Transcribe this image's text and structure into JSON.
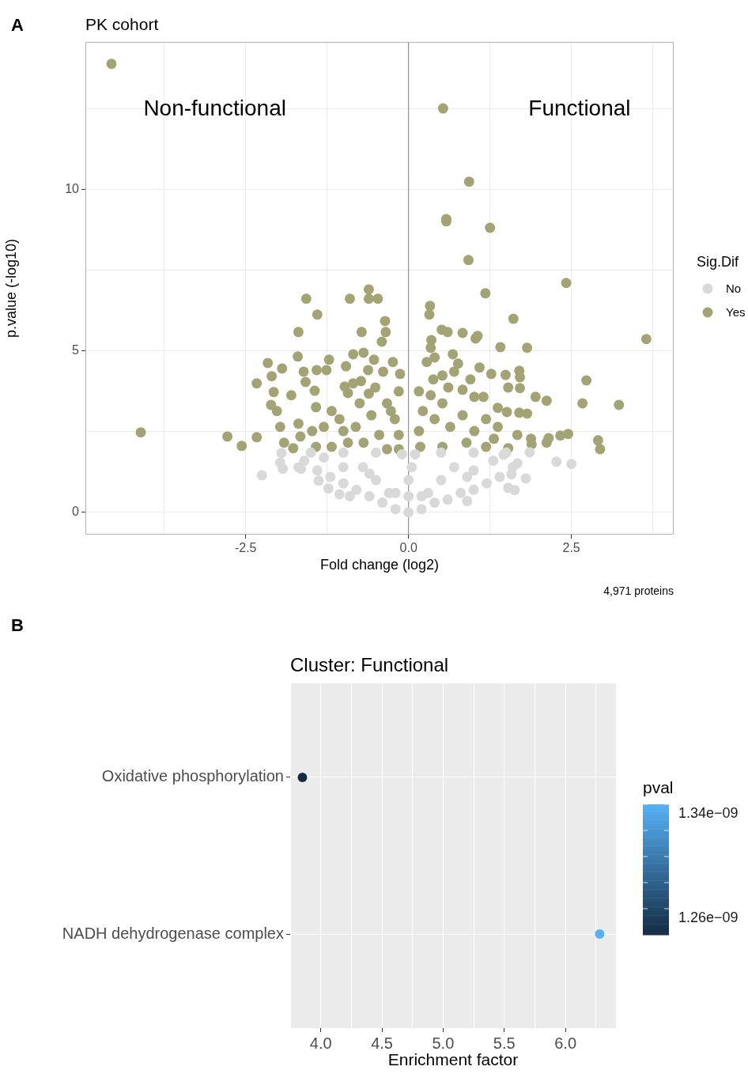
{
  "chart_data": [
    {
      "type": "scatter",
      "title": "PK cohort",
      "xlabel": "Fold change (log2)",
      "ylabel": "p.value (-log10)",
      "legend_title": "Sig.Dif",
      "legend": "right",
      "grid": true,
      "marker": "circle",
      "xlim": [
        -4.96,
        4.07
      ],
      "ylim": [
        -0.69,
        14.58
      ],
      "xticks": [
        {
          "value": -3.75,
          "label": null
        },
        -2.5,
        {
          "value": -1.25,
          "label": null
        },
        {
          "value": 0,
          "label": "0.0"
        },
        {
          "value": 1.25,
          "label": null
        },
        2.5,
        {
          "value": 3.75,
          "label": null
        }
      ],
      "yticks": [
        0,
        {
          "value": 2.5,
          "label": null
        },
        5,
        {
          "value": 7.5,
          "label": null
        },
        10,
        {
          "value": 12.5,
          "label": null
        }
      ],
      "ref_lines": [
        {
          "axis": "x",
          "value": 0,
          "color": "#808080"
        }
      ],
      "annotations": [
        "Non-functional",
        "Functional",
        "4,971 proteins",
        "A"
      ],
      "series": [
        {
          "name": "No",
          "color": "#d9d9d9",
          "x": [
            0,
            -0.2,
            0.2,
            -0.4,
            0.4,
            -0.6,
            0.6,
            -0.8,
            0.8,
            -1.0,
            1.0,
            -1.2,
            1.2,
            -1.4,
            1.4,
            -1.6,
            1.6,
            -1.5,
            1.5,
            -1.0,
            1.0,
            -0.5,
            0.5,
            -0.1,
            0.1,
            -0.5,
            0.5,
            -1.0,
            1.0,
            -0.3,
            0.3,
            0,
            0,
            -0.7,
            0.7,
            0.05,
            -1.3,
            1.3,
            -2.25,
            -1.95,
            -1.97,
            -1.93,
            -1.69,
            -1.65,
            -1.38,
            -1.23,
            -1.06,
            2.27,
            2.5,
            1.8,
            1.67,
            1.86,
            1.63,
            1.53,
            1.58,
            1.46,
            -0.9,
            0.9,
            -0.2,
            0.2,
            0.9,
            -0.6
          ],
          "values": [
            0,
            0.1,
            0.1,
            0.3,
            0.3,
            0.5,
            0.4,
            0.7,
            0.6,
            0.9,
            0.7,
            1.1,
            0.9,
            1.3,
            1.1,
            1.6,
            1.4,
            1.85,
            1.85,
            1.85,
            1.85,
            1.85,
            1.85,
            1.8,
            1.8,
            1.0,
            1.0,
            1.4,
            1.3,
            0.6,
            0.6,
            1.0,
            0.5,
            1.4,
            1.4,
            1.4,
            1.7,
            1.6,
            1.15,
            1.84,
            1.54,
            1.35,
            1.4,
            1.35,
            0.98,
            0.74,
            0.56,
            1.57,
            1.5,
            1.05,
            1.52,
            1.86,
            0.69,
            0.76,
            1.18,
            1.79,
            0.5,
            0.35,
            0.6,
            0.5,
            1.1,
            1.2
          ]
        },
        {
          "name": "Yes",
          "color": "#a3a375",
          "x": [
            -4.56,
            0.53,
            0.93,
            0.58,
            0.58,
            1.25,
            0.92,
            2.42,
            1.18,
            3.65,
            1.61,
            -4.11,
            -2.78,
            -2.56,
            -2.33,
            -2.33,
            -2.16,
            -1.94,
            -2.1,
            -2.07,
            -2.11,
            -2.02,
            -1.8,
            -1.7,
            -1.69,
            -1.57,
            -1.4,
            -1.61,
            -1.58,
            -1.44,
            -1.41,
            -1.26,
            -1.22,
            -0.9,
            -0.61,
            -0.61,
            -0.47,
            -0.36,
            -0.35,
            -0.41,
            -0.72,
            -0.85,
            -0.69,
            -0.62,
            -0.96,
            -0.93,
            -0.98,
            -0.85,
            -0.73,
            -0.61,
            -0.53,
            -0.24,
            -0.13,
            -1.69,
            -1.66,
            -1.77,
            -1.97,
            -1.42,
            -1.18,
            -1.3,
            -1.06,
            -0.81,
            -0.57,
            -0.33,
            -0.21,
            -0.15,
            -0.45,
            -0.69,
            -0.93,
            -1.18,
            -1.42,
            -0.15,
            -0.27,
            -0.39,
            -0.51,
            -0.75,
            -1.0,
            -1.48,
            -1.91,
            -0.15,
            -0.33,
            0.33,
            0.32,
            0.51,
            0.6,
            0.83,
            1.03,
            1.06,
            1.41,
            1.82,
            0.35,
            0.34,
            0.4,
            0.28,
            0.68,
            0.76,
            1.09,
            1.27,
            1.49,
            1.7,
            1.71,
            1.53,
            1.71,
            1.95,
            2.12,
            2.73,
            2.67,
            3.23,
            2.45,
            2.33,
            2.91,
            2.94,
            1.88,
            1.89,
            2.12,
            2.15,
            1.67,
            1.53,
            1.82,
            1.7,
            1.51,
            1.37,
            1.15,
            1.01,
            0.83,
            0.61,
            0.16,
            0.22,
            0.16,
            0.18,
            0.34,
            0.4,
            0.52,
            0.64,
            0.83,
            1.01,
            1.19,
            1.31,
            0.89,
            0.52,
            1.19,
            1.37,
            0.7,
            0.52,
            0.95,
            0.38
          ],
          "values": [
            13.9,
            12.52,
            10.25,
            9.09,
            9.02,
            8.82,
            7.82,
            7.11,
            6.79,
            5.37,
            6.0,
            2.48,
            2.35,
            2.06,
            2.33,
            4.0,
            4.63,
            4.46,
            4.22,
            3.73,
            3.33,
            3.14,
            3.63,
            4.83,
            5.59,
            6.62,
            6.13,
            4.36,
            4.04,
            3.77,
            4.41,
            4.41,
            4.73,
            6.62,
            6.62,
            6.91,
            6.62,
            5.93,
            5.59,
            5.29,
            5.59,
            4.9,
            4.95,
            4.41,
            4.53,
            3.7,
            3.9,
            4.0,
            4.07,
            3.68,
            4.73,
            4.66,
            4.29,
            2.75,
            2.35,
            1.99,
            2.65,
            3.26,
            3.14,
            2.65,
            2.89,
            2.65,
            3.01,
            3.38,
            2.89,
            2.4,
            2.4,
            2.16,
            2.16,
            2.03,
            2.03,
            3.75,
            3.14,
            4.36,
            3.87,
            3.38,
            2.52,
            2.52,
            2.16,
            1.96,
            1.96,
            6.4,
            6.13,
            5.66,
            5.59,
            5.56,
            5.39,
            5.47,
            5.12,
            5.1,
            5.34,
            5.1,
            4.8,
            4.66,
            4.9,
            4.61,
            4.49,
            4.29,
            4.26,
            4.39,
            4.19,
            3.87,
            3.85,
            3.58,
            3.46,
            4.09,
            3.38,
            3.33,
            2.43,
            2.38,
            2.23,
            1.96,
            2.28,
            2.11,
            2.16,
            2.3,
            2.4,
            1.99,
            3.06,
            3.09,
            3.11,
            3.24,
            3.58,
            3.58,
            3.8,
            3.87,
            3.75,
            3.14,
            2.52,
            2.03,
            3.63,
            2.89,
            3.38,
            2.65,
            3.01,
            2.52,
            2.89,
            2.28,
            2.16,
            2.03,
            2.03,
            2.65,
            4.36,
            4.24,
            4.12,
            4.12
          ]
        }
      ]
    },
    {
      "type": "scatter",
      "orientation": "horizontal",
      "title": "Cluster: Functional",
      "xlabel": "Enrichment factor",
      "clabel": "pval",
      "grid": true,
      "marker": "circle",
      "categories": [
        "Oxidative phosphorylation",
        "NADH dehydrogenase complex"
      ],
      "values": [
        3.85,
        6.28
      ],
      "cvalues": [
        1.24e-09,
        1.34e-09
      ],
      "clim": [
        1.24e-09,
        1.34e-09
      ],
      "cticks": [
        {
          "value": 1.26e-09,
          "label": "1.26e−09"
        },
        {
          "value": 1.28e-09,
          "label": null
        },
        {
          "value": 1.3e-09,
          "label": null
        },
        {
          "value": 1.32e-09,
          "label": null
        },
        {
          "value": 1.34e-09,
          "label": "1.34e−09"
        }
      ],
      "xlim": [
        3.75,
        6.413
      ],
      "xticks": [
        {
          "value": 3.75,
          "label": null
        },
        {
          "value": 4,
          "label": "4.0"
        },
        {
          "value": 4.25,
          "label": null
        },
        4.5,
        {
          "value": 4.75,
          "label": null
        },
        {
          "value": 5,
          "label": "5.0"
        },
        {
          "value": 5.25,
          "label": null
        },
        5.5,
        {
          "value": 5.75,
          "label": null
        },
        {
          "value": 6,
          "label": "6.0"
        },
        {
          "value": 6.25,
          "label": null
        }
      ],
      "annotations": [
        "B"
      ]
    }
  ]
}
